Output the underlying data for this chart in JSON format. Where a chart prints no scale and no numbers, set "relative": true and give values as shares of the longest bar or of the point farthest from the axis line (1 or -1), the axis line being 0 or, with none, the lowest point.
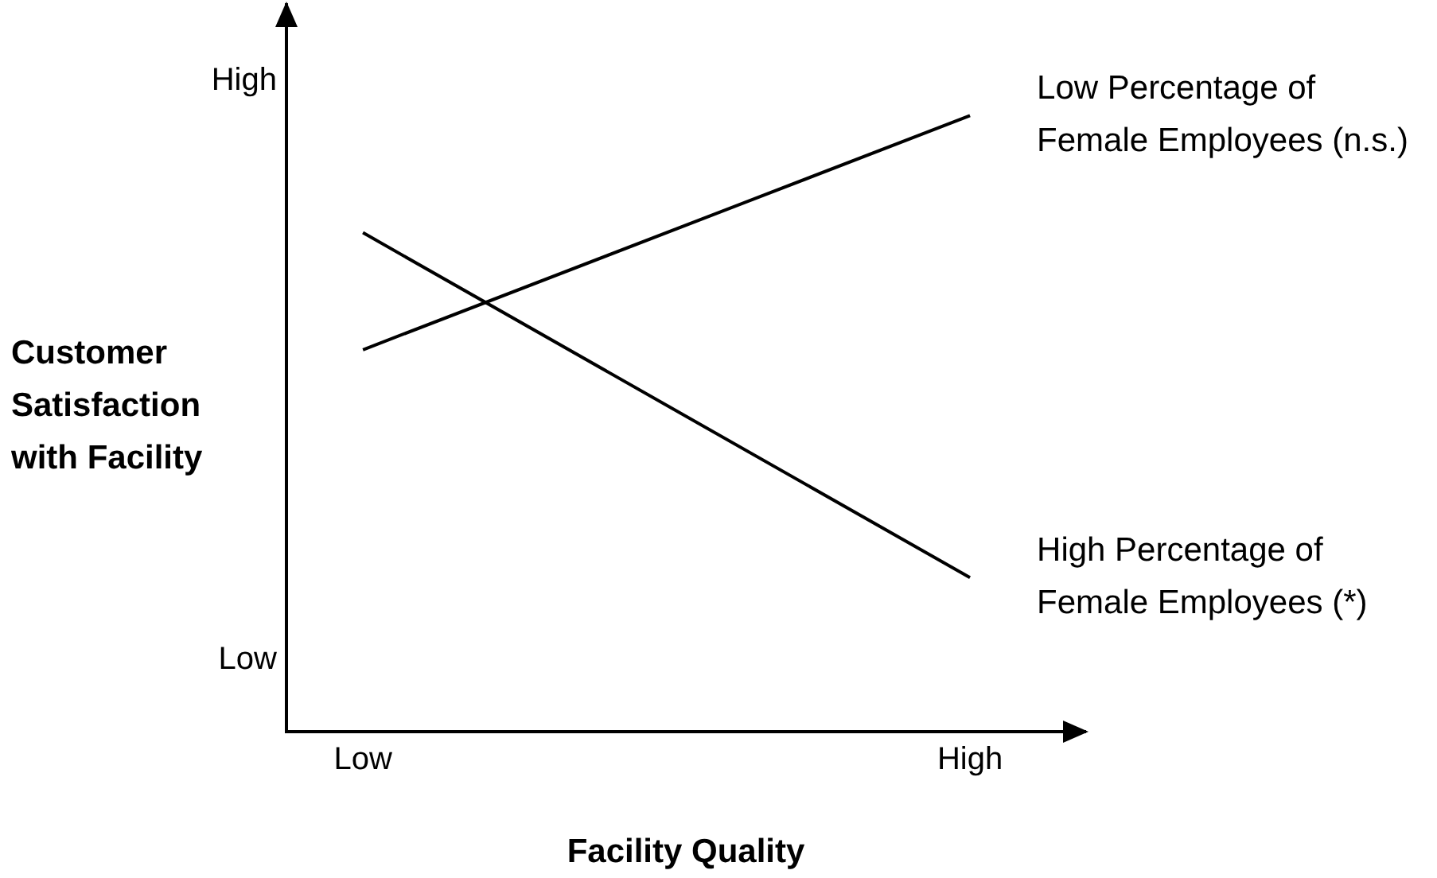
{
  "chart_data": {
    "type": "line",
    "xlabel": "Facility Quality",
    "ylabel": "Customer Satisfaction with Facility",
    "categories": [
      "Low",
      "High"
    ],
    "relative": true,
    "annotations": [
      "High",
      "Low"
    ],
    "series": [
      {
        "name": "Low Percentage of Female Employees (n.s.)",
        "color": "#000000",
        "values": [
          0.62,
          1
        ]
      },
      {
        "name": "High Percentage of Female Employees (*)",
        "color": "#000000",
        "values": [
          0.81,
          0.25
        ]
      }
    ]
  }
}
